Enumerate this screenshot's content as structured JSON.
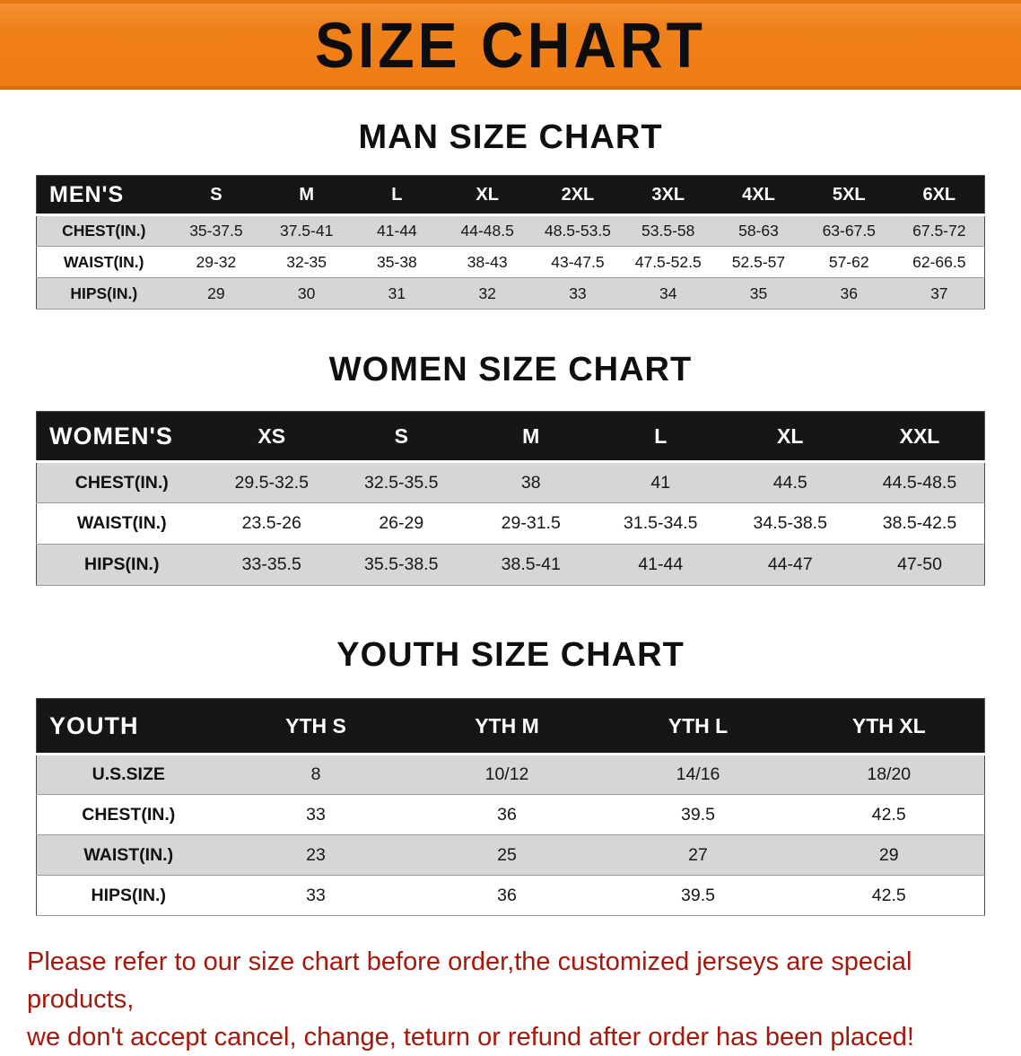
{
  "banner": {
    "title": "SIZE CHART",
    "bg_color": "#f08019",
    "text_color": "#0d0d0d"
  },
  "chart_data": [
    {
      "type": "table",
      "title": "MAN SIZE CHART",
      "corner_label": "MEN'S",
      "columns": [
        "S",
        "M",
        "L",
        "XL",
        "2XL",
        "3XL",
        "4XL",
        "5XL",
        "6XL"
      ],
      "rows": [
        {
          "label": "CHEST(IN.)",
          "values": [
            "35-37.5",
            "37.5-41",
            "41-44",
            "44-48.5",
            "48.5-53.5",
            "53.5-58",
            "58-63",
            "63-67.5",
            "67.5-72"
          ]
        },
        {
          "label": "WAIST(IN.)",
          "values": [
            "29-32",
            "32-35",
            "35-38",
            "38-43",
            "43-47.5",
            "47.5-52.5",
            "52.5-57",
            "57-62",
            "62-66.5"
          ]
        },
        {
          "label": "HIPS(IN.)",
          "values": [
            "29",
            "30",
            "31",
            "32",
            "33",
            "34",
            "35",
            "36",
            "37"
          ]
        }
      ]
    },
    {
      "type": "table",
      "title": "WOMEN SIZE CHART",
      "corner_label": "WOMEN'S",
      "columns": [
        "XS",
        "S",
        "M",
        "L",
        "XL",
        "XXL"
      ],
      "rows": [
        {
          "label": "CHEST(IN.)",
          "values": [
            "29.5-32.5",
            "32.5-35.5",
            "38",
            "41",
            "44.5",
            "44.5-48.5"
          ]
        },
        {
          "label": "WAIST(IN.)",
          "values": [
            "23.5-26",
            "26-29",
            "29-31.5",
            "31.5-34.5",
            "34.5-38.5",
            "38.5-42.5"
          ]
        },
        {
          "label": "HIPS(IN.)",
          "values": [
            "33-35.5",
            "35.5-38.5",
            "38.5-41",
            "41-44",
            "44-47",
            "47-50"
          ]
        }
      ]
    },
    {
      "type": "table",
      "title": "YOUTH SIZE CHART",
      "corner_label": "YOUTH",
      "columns": [
        "YTH S",
        "YTH M",
        "YTH L",
        "YTH XL"
      ],
      "rows": [
        {
          "label": "U.S.SIZE",
          "values": [
            "8",
            "10/12",
            "14/16",
            "18/20"
          ]
        },
        {
          "label": "CHEST(IN.)",
          "values": [
            "33",
            "36",
            "39.5",
            "42.5"
          ]
        },
        {
          "label": "WAIST(IN.)",
          "values": [
            "23",
            "25",
            "27",
            "29"
          ]
        },
        {
          "label": "HIPS(IN.)",
          "values": [
            "33",
            "36",
            "39.5",
            "42.5"
          ]
        }
      ]
    }
  ],
  "footer_note": {
    "color": "#a8170b",
    "lines": [
      "Please refer to our size chart before order,the customized jerseys are special products,",
      "we don't accept cancel, change, teturn or refund after order has been placed!"
    ]
  }
}
